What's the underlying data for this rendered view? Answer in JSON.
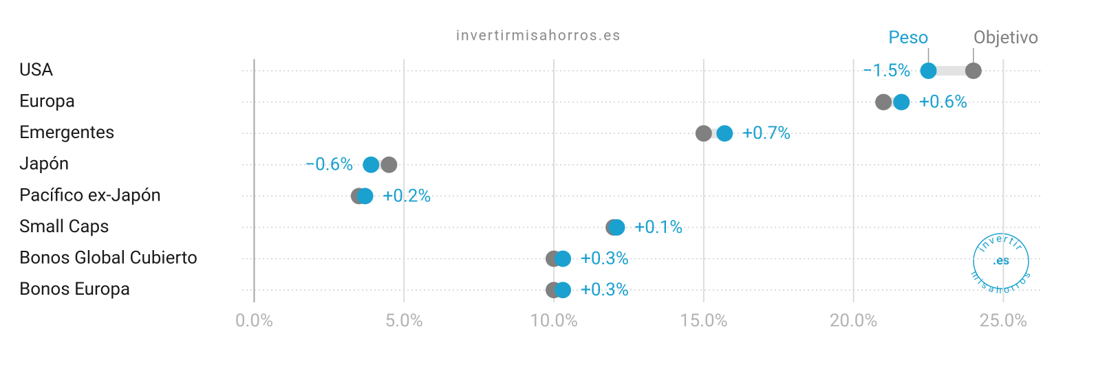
{
  "chart_data": {
    "type": "dumbbell",
    "watermark": "invertirmisahorros.es",
    "categories": [
      "USA",
      "Europa",
      "Emergentes",
      "Japón",
      "Pacífico ex-Japón",
      "Small Caps",
      "Bonos Global Cubierto",
      "Bonos Europa"
    ],
    "series": [
      {
        "name": "Peso",
        "color": "#1ba1cf",
        "values": [
          22.5,
          21.6,
          15.7,
          3.9,
          3.7,
          12.1,
          10.3,
          10.3
        ]
      },
      {
        "name": "Objetivo",
        "color": "#808080",
        "values": [
          24.0,
          21.0,
          15.0,
          4.5,
          3.5,
          12.0,
          10.0,
          10.0
        ]
      }
    ],
    "difference": {
      "values": [
        -1.5,
        0.6,
        0.7,
        -0.6,
        0.2,
        0.1,
        0.3,
        0.3
      ],
      "value_labels": [
        "−1.5%",
        "+0.6%",
        "+0.7%",
        "−0.6%",
        "+0.2%",
        "+0.1%",
        "+0.3%",
        "+0.3%"
      ]
    },
    "xlim": [
      -0.4,
      26.3
    ],
    "xticks": [
      {
        "value": 0,
        "label": "0.0%"
      },
      {
        "value": 5,
        "label": "5.0%"
      },
      {
        "value": 10,
        "label": "10.0%"
      },
      {
        "value": 15,
        "label": "15.0%"
      },
      {
        "value": 20,
        "label": "20.0%"
      },
      {
        "value": 25,
        "label": "25.0%"
      }
    ],
    "grid": true,
    "logo": {
      "top": "invertir",
      "center": ".es",
      "bottom": "misahorros"
    }
  }
}
